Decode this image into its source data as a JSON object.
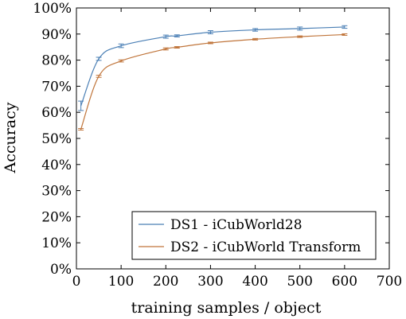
{
  "chart_data": {
    "type": "line",
    "xlabel": "training samples / object",
    "ylabel": "Accuracy",
    "xlim": [
      0,
      700
    ],
    "ylim": [
      0,
      100
    ],
    "xticks": [
      "0",
      "100",
      "200",
      "300",
      "400",
      "500",
      "600",
      "700"
    ],
    "yticks": [
      "0%",
      "10%",
      "20%",
      "30%",
      "40%",
      "50%",
      "60%",
      "70%",
      "80%",
      "90%",
      "100%"
    ],
    "grid": false,
    "legend_position": "bottom-right",
    "series": [
      {
        "name": "DS1 - iCubWorld28",
        "color": "#4a7fb5",
        "x": [
          10,
          50,
          100,
          200,
          225,
          300,
          400,
          500,
          600
        ],
        "y": [
          62.5,
          80.5,
          85.5,
          89.0,
          89.3,
          90.7,
          91.6,
          92.1,
          92.7
        ],
        "err": [
          1.8,
          0.6,
          0.7,
          0.6,
          0.4,
          0.6,
          0.5,
          0.6,
          0.5
        ]
      },
      {
        "name": "DS2 - iCubWorld Transform",
        "color": "#c0753b",
        "x": [
          10,
          50,
          100,
          200,
          225,
          300,
          400,
          500,
          600
        ],
        "y": [
          53.5,
          73.8,
          79.7,
          84.3,
          84.9,
          86.6,
          88.0,
          89.0,
          89.8
        ],
        "err": [
          0.3,
          0.4,
          0.4,
          0.4,
          0.3,
          0.3,
          0.3,
          0.3,
          0.3
        ]
      }
    ]
  }
}
